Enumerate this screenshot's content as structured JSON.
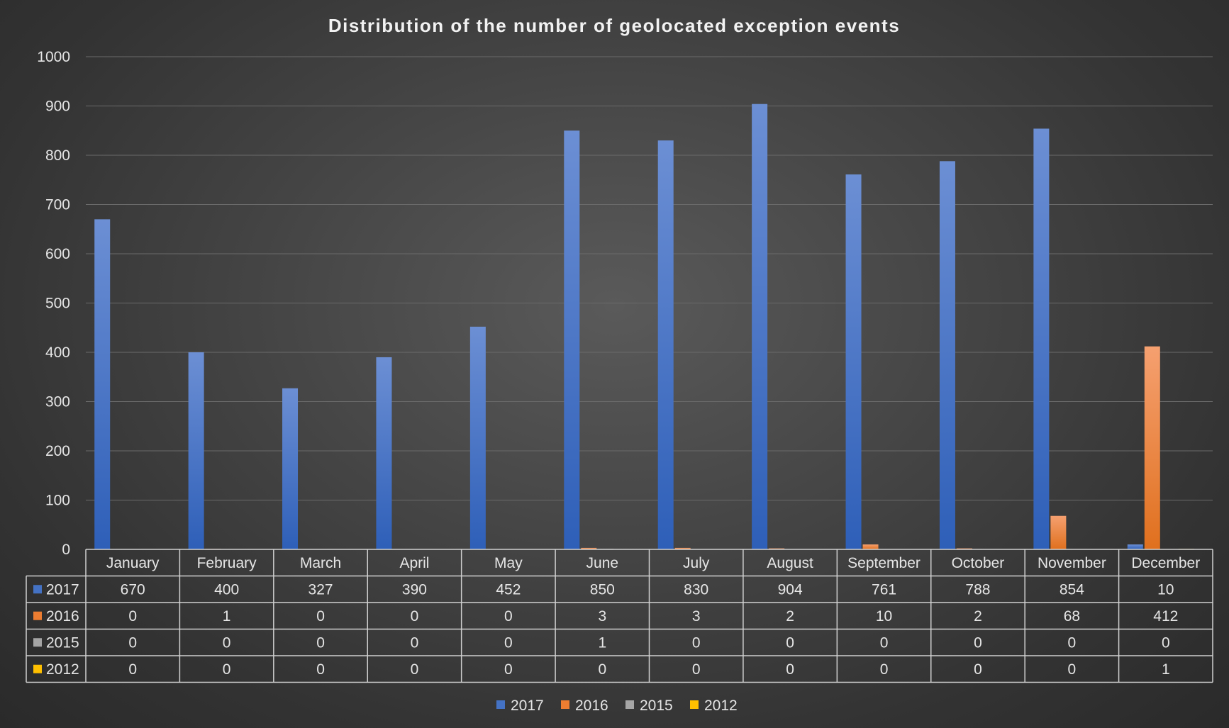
{
  "chart_data": {
    "type": "bar",
    "title": "Distribution of the number of geolocated exception events",
    "xlabel": "",
    "ylabel": "",
    "ylim": [
      0,
      1000
    ],
    "y_ticks": [
      "0",
      "100",
      "200",
      "300",
      "400",
      "500",
      "600",
      "700",
      "800",
      "900",
      "1000"
    ],
    "grid": true,
    "legend_placement": "bottom",
    "categories": [
      "January",
      "February",
      "March",
      "April",
      "May",
      "June",
      "July",
      "August",
      "September",
      "October",
      "November",
      "December"
    ],
    "series": [
      {
        "name": "2017",
        "color": "#4472c4",
        "values": [
          670,
          400,
          327,
          390,
          452,
          850,
          830,
          904,
          761,
          788,
          854,
          10
        ]
      },
      {
        "name": "2016",
        "color": "#ed7d31",
        "values": [
          0,
          1,
          0,
          0,
          0,
          3,
          3,
          2,
          10,
          2,
          68,
          412
        ]
      },
      {
        "name": "2015",
        "color": "#a5a5a5",
        "values": [
          0,
          0,
          0,
          0,
          0,
          1,
          0,
          0,
          0,
          0,
          0,
          0
        ]
      },
      {
        "name": "2012",
        "color": "#ffc000",
        "values": [
          0,
          0,
          0,
          0,
          0,
          0,
          0,
          0,
          0,
          0,
          0,
          1
        ]
      }
    ],
    "data_table": true
  }
}
